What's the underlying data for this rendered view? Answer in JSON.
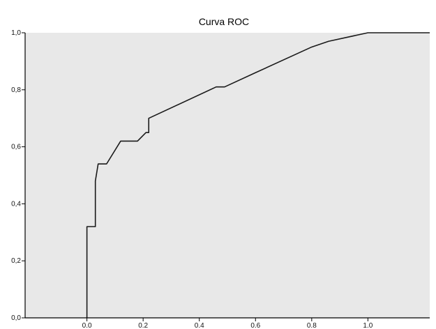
{
  "chart_data": {
    "type": "line",
    "title": "Curva ROC",
    "xlabel": "",
    "ylabel": "",
    "xlim": [
      -0.22,
      1.22
    ],
    "ylim": [
      0,
      1
    ],
    "xticks": [
      "0.0",
      "0.2",
      "0.4",
      "0.6",
      "0.8",
      "1.0"
    ],
    "yticks": [
      "0,0",
      "0,2",
      "0,4",
      "0,6",
      "0,8",
      "1,0"
    ],
    "grid": false,
    "series": [
      {
        "x": [
          0.0,
          0.0,
          0.03,
          0.03,
          0.04,
          0.04,
          0.07,
          0.12,
          0.18,
          0.21,
          0.22,
          0.22,
          0.46,
          0.49,
          0.6,
          0.8,
          0.86,
          1.0,
          1.22
        ],
        "y": [
          0.0,
          0.32,
          0.32,
          0.48,
          0.54,
          0.54,
          0.54,
          0.62,
          0.62,
          0.65,
          0.65,
          0.7,
          0.81,
          0.81,
          0.86,
          0.95,
          0.97,
          1.0,
          1.0
        ]
      }
    ],
    "colors": {
      "plot_background": "#e8e8e8",
      "line": "#1a1a1a",
      "axis": "#000000"
    }
  }
}
